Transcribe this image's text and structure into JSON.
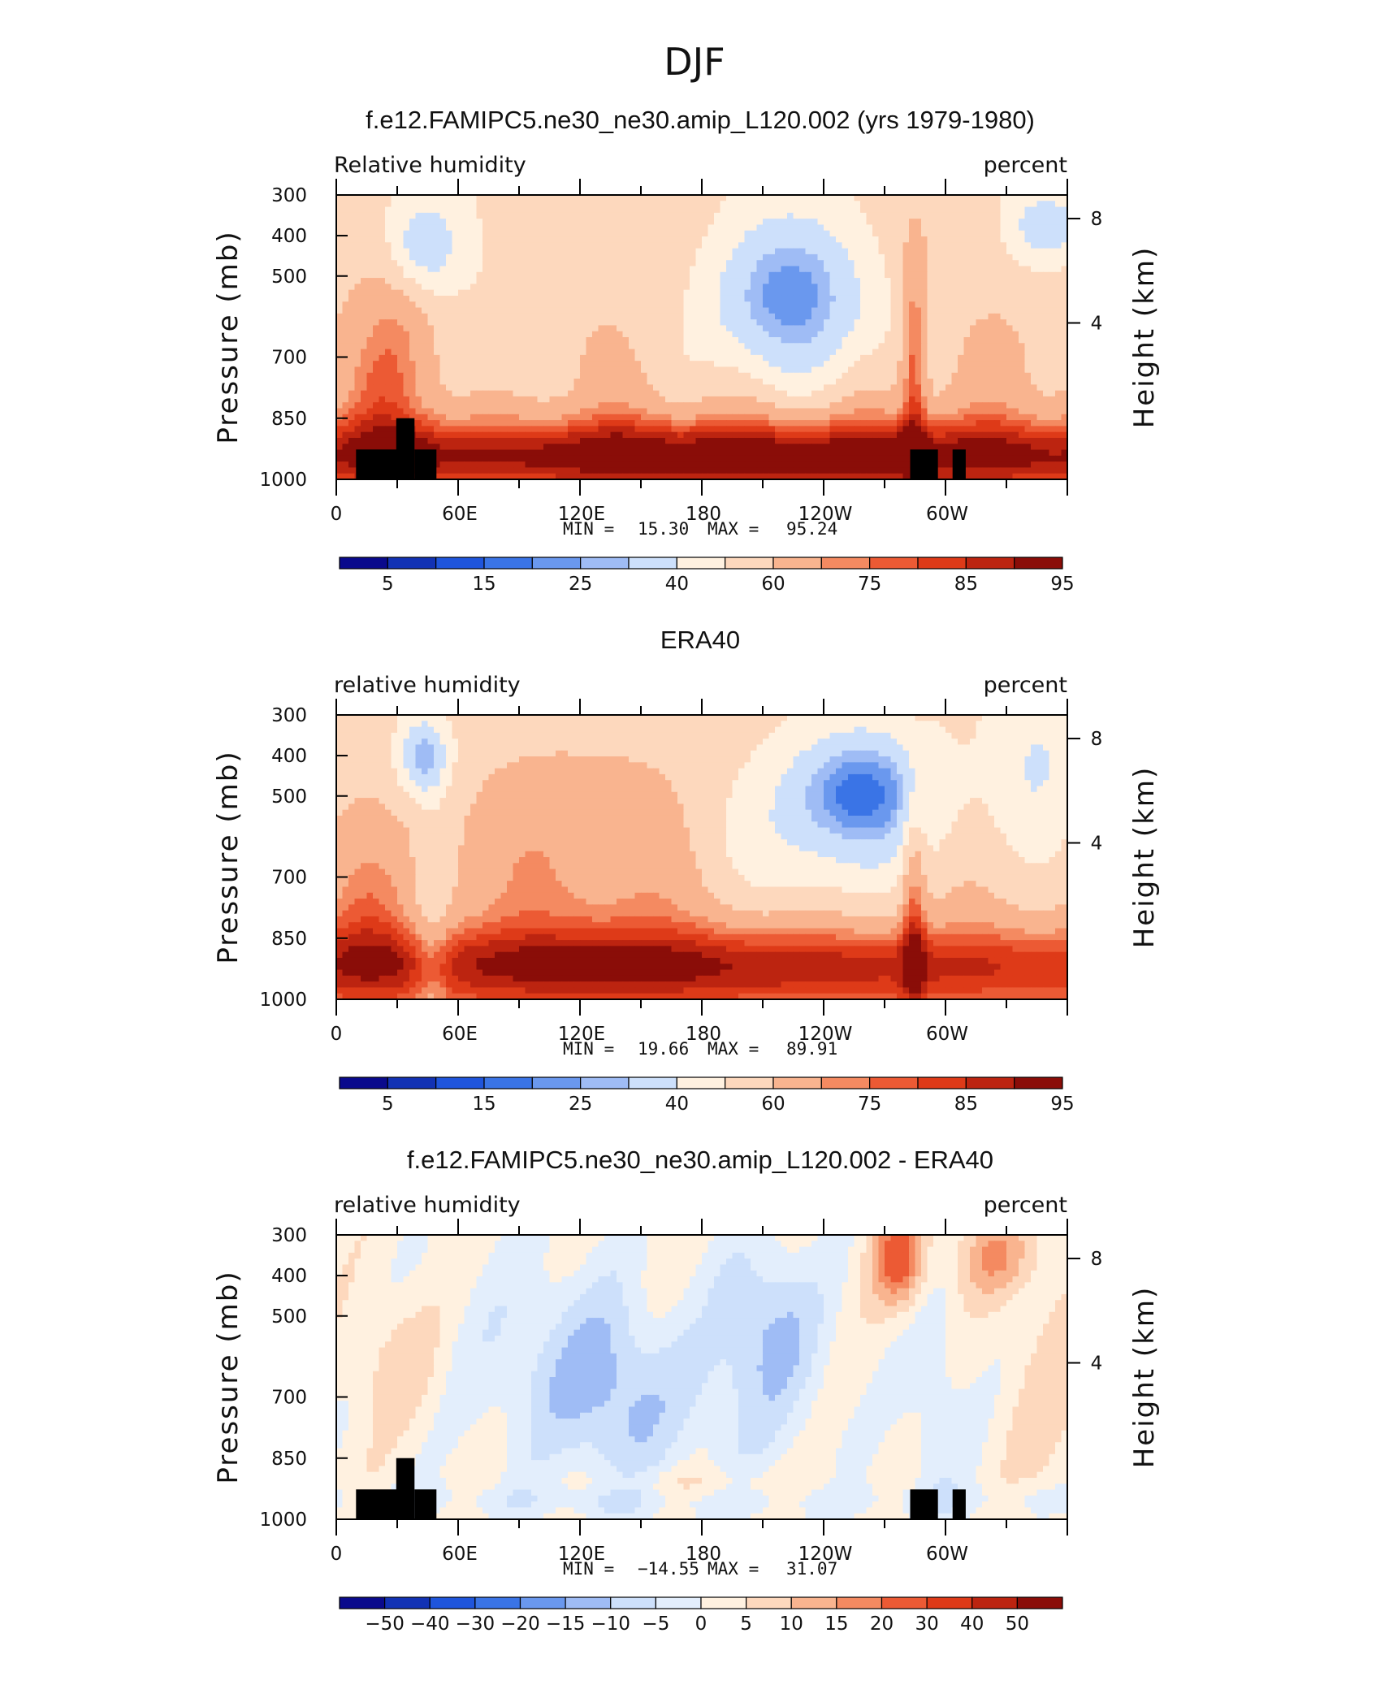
{
  "figure": {
    "title": "DJF"
  },
  "palettes": {
    "absolute": [
      "#0a0a8c",
      "#1232b4",
      "#1f55dc",
      "#3a74e6",
      "#6a98ee",
      "#9fbcf5",
      "#cde0fb",
      "#fff1e0",
      "#fdd8bd",
      "#f9b48f",
      "#f48a61",
      "#ec5a34",
      "#de3a18",
      "#bc2410",
      "#8a0d08"
    ],
    "difference": [
      "#0a0a8c",
      "#1232b4",
      "#1f55dc",
      "#3a74e6",
      "#6a98ee",
      "#9fbcf5",
      "#cde0fb",
      "#e3eefc",
      "#fff1e0",
      "#fdd8bd",
      "#f9b48f",
      "#f48a61",
      "#ec5a34",
      "#de3a18",
      "#bc2410",
      "#8a0d08"
    ]
  },
  "chart_data": [
    {
      "type": "heatmap",
      "title": "f.e12.FAMIPC5.ne30_ne30.amip_L120.002 (yrs 1979-1980)",
      "left_label": "Relative humidity",
      "right_label": "percent",
      "ylabel": "Pressure (mb)",
      "ylabel2": "Height (km)",
      "yticks": [
        "300",
        "400",
        "500",
        "700",
        "850",
        "1000"
      ],
      "yticks2": [
        "8",
        "4"
      ],
      "xticks": [
        "0",
        "60E",
        "120E",
        "180",
        "120W",
        "60W"
      ],
      "min_label": "MIN =",
      "min_value": "15.30",
      "max_label": "MAX =",
      "max_value": "95.24",
      "colorbar_labels": [
        "5",
        "15",
        "25",
        "40",
        "60",
        "75",
        "85",
        "95"
      ],
      "palette": "absolute",
      "has_topography": true
    },
    {
      "type": "heatmap",
      "title": "ERA40",
      "left_label": "relative humidity",
      "right_label": "percent",
      "ylabel": "Pressure (mb)",
      "ylabel2": "Height (km)",
      "yticks": [
        "300",
        "400",
        "500",
        "700",
        "850",
        "1000"
      ],
      "yticks2": [
        "8",
        "4"
      ],
      "xticks": [
        "0",
        "60E",
        "120E",
        "180",
        "120W",
        "60W"
      ],
      "min_label": "MIN =",
      "min_value": "19.66",
      "max_label": "MAX =",
      "max_value": "89.91",
      "colorbar_labels": [
        "5",
        "15",
        "25",
        "40",
        "60",
        "75",
        "85",
        "95"
      ],
      "palette": "absolute",
      "has_topography": false
    },
    {
      "type": "heatmap",
      "title": "f.e12.FAMIPC5.ne30_ne30.amip_L120.002 - ERA40",
      "left_label": "relative humidity",
      "right_label": "percent",
      "ylabel": "Pressure (mb)",
      "ylabel2": "Height (km)",
      "yticks": [
        "300",
        "400",
        "500",
        "700",
        "850",
        "1000"
      ],
      "yticks2": [
        "8",
        "4"
      ],
      "xticks": [
        "0",
        "60E",
        "120E",
        "180",
        "120W",
        "60W"
      ],
      "min_label": "MIN =",
      "min_value": "−14.55",
      "max_label": "MAX =",
      "max_value": "31.07",
      "colorbar_labels": [
        "−50",
        "−40",
        "−30",
        "−20",
        "−15",
        "−10",
        "−5",
        "0",
        "5",
        "10",
        "15",
        "20",
        "30",
        "40",
        "50"
      ],
      "palette": "difference",
      "has_topography": true
    }
  ]
}
